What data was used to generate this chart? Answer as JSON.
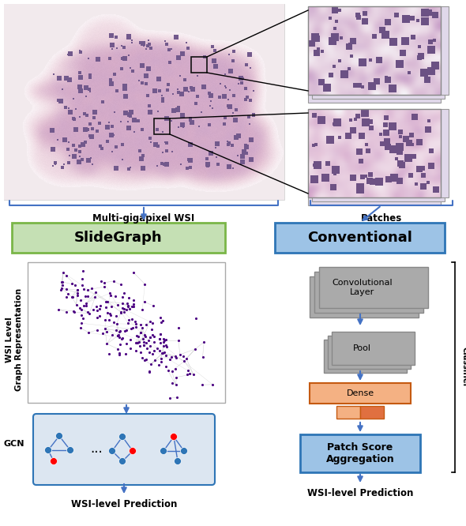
{
  "fig_width": 5.9,
  "fig_height": 6.66,
  "dpi": 100,
  "bg_color": "#ffffff",
  "wsi_label": "Multi-gigapixel WSI",
  "patches_label": "Patches",
  "slidegraph_label": "SlideGraph",
  "conventional_label": "Conventional",
  "slidegraph_box_color": "#c5e0b4",
  "slidegraph_box_edge": "#7ab648",
  "conventional_box_color": "#9dc3e6",
  "conventional_box_edge": "#2e75b6",
  "arrow_color": "#4472c4",
  "brace_color": "#4472c4",
  "conv_layer_color": "#aaaaaa",
  "conv_layer_edge": "#888888",
  "pool_color": "#aaaaaa",
  "pool_edge": "#888888",
  "dense_color": "#f4b183",
  "dense_edge": "#c55a11",
  "patch_score_box_color": "#9dc3e6",
  "patch_score_box_edge": "#2e75b6",
  "gcn_box_color": "#dce6f1",
  "gcn_box_edge": "#2e75b6",
  "node_blue": "#2e75b6",
  "node_red": "#ff0000",
  "graph_node_color": "#4b0082",
  "graph_edge_color": "#bbbbbb",
  "wsi_level_label": "WSI Level\nGraph Representation",
  "gcn_label": "GCN",
  "wsi_prediction_left": "WSI-level Prediction",
  "wsi_prediction_right": "WSI-level Prediction",
  "patch_level_label": "Patch Level Image\nClassifier",
  "conv_layer_text": "Convolutional\nLayer",
  "pool_text": "Pool",
  "dense_text": "Dense",
  "patch_score_text": "Patch Score\nAggregation"
}
